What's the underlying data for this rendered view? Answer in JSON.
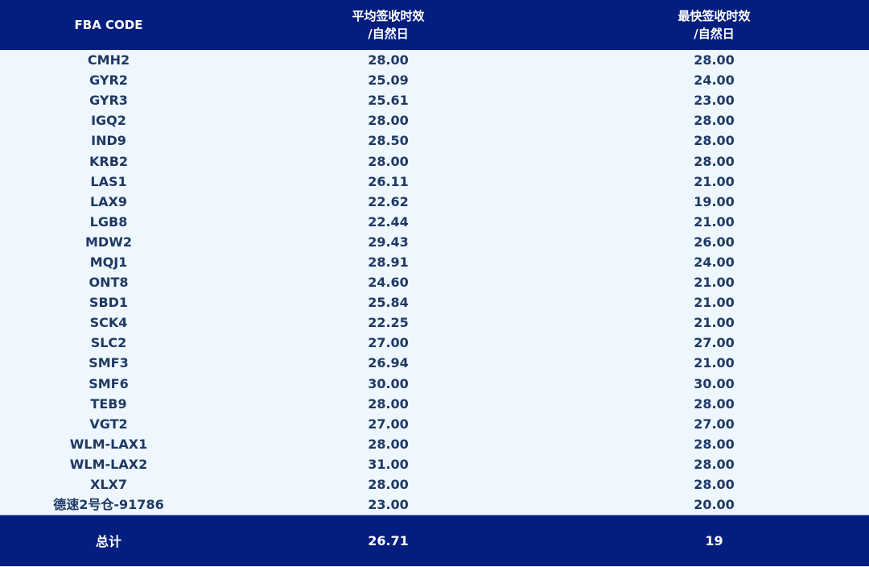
{
  "header": {
    "code": "FBA CODE",
    "avg_line1": "平均签收时效",
    "avg_line2": "/自然日",
    "fast_line1": "最快签收时效",
    "fast_line2": "/自然日"
  },
  "rows": [
    {
      "code": "CMH2",
      "avg": "28.00",
      "fast": "28.00"
    },
    {
      "code": "GYR2",
      "avg": "25.09",
      "fast": "24.00"
    },
    {
      "code": "GYR3",
      "avg": "25.61",
      "fast": "23.00"
    },
    {
      "code": "IGQ2",
      "avg": "28.00",
      "fast": "28.00"
    },
    {
      "code": "IND9",
      "avg": "28.50",
      "fast": "28.00"
    },
    {
      "code": "KRB2",
      "avg": "28.00",
      "fast": "28.00"
    },
    {
      "code": "LAS1",
      "avg": "26.11",
      "fast": "21.00"
    },
    {
      "code": "LAX9",
      "avg": "22.62",
      "fast": "19.00"
    },
    {
      "code": "LGB8",
      "avg": "22.44",
      "fast": "21.00"
    },
    {
      "code": "MDW2",
      "avg": "29.43",
      "fast": "26.00"
    },
    {
      "code": "MQJ1",
      "avg": "28.91",
      "fast": "24.00"
    },
    {
      "code": "ONT8",
      "avg": "24.60",
      "fast": "21.00"
    },
    {
      "code": "SBD1",
      "avg": "25.84",
      "fast": "21.00"
    },
    {
      "code": "SCK4",
      "avg": "22.25",
      "fast": "21.00"
    },
    {
      "code": "SLC2",
      "avg": "27.00",
      "fast": "27.00"
    },
    {
      "code": "SMF3",
      "avg": "26.94",
      "fast": "21.00"
    },
    {
      "code": "SMF6",
      "avg": "30.00",
      "fast": "30.00"
    },
    {
      "code": "TEB9",
      "avg": "28.00",
      "fast": "28.00"
    },
    {
      "code": "VGT2",
      "avg": "27.00",
      "fast": "27.00"
    },
    {
      "code": "WLM-LAX1",
      "avg": "28.00",
      "fast": "28.00"
    },
    {
      "code": "WLM-LAX2",
      "avg": "31.00",
      "fast": "28.00"
    },
    {
      "code": "XLX7",
      "avg": "28.00",
      "fast": "28.00"
    },
    {
      "code": "德速2号仓-91786",
      "avg": "23.00",
      "fast": "20.00"
    }
  ],
  "footer": {
    "label": "总计",
    "avg": "26.71",
    "fast": "19"
  },
  "colors": {
    "header_bg": "#041e80",
    "body_bg": "#eef7fe",
    "body_text": "#1f3864"
  }
}
